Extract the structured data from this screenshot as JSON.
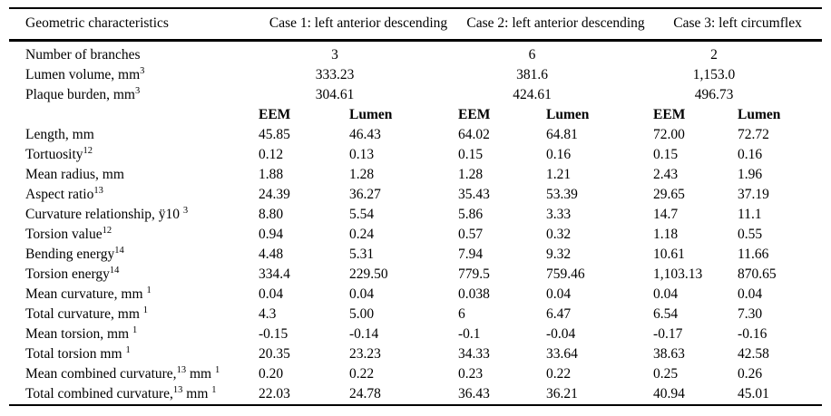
{
  "table": {
    "header": {
      "col1": "Geometric characteristics",
      "case1": "Case 1: left anterior descending",
      "case2": "Case 2: left anterior descending",
      "case3": "Case 3: left circumflex"
    },
    "summary_rows": [
      {
        "label": "Number of branches",
        "values": [
          "3",
          "6",
          "2"
        ]
      },
      {
        "label": "Lumen volume, mm^{3}",
        "values": [
          "333.23",
          "381.6",
          "1,153.0"
        ]
      },
      {
        "label": "Plaque burden, mm^{3}",
        "values": [
          "304.61",
          "424.61",
          "496.73"
        ]
      }
    ],
    "subheader": {
      "eem": "EEM",
      "lumen": "Lumen"
    },
    "rows": [
      {
        "label": "Length, mm",
        "values": [
          "45.85",
          "46.43",
          "64.02",
          "64.81",
          "72.00",
          "72.72"
        ]
      },
      {
        "label": "Tortuosity^{12}",
        "values": [
          "0.12",
          "0.13",
          "0.15",
          "0.16",
          "0.15",
          "0.16"
        ]
      },
      {
        "label": "Mean radius, mm",
        "values": [
          "1.88",
          "1.28",
          "1.28",
          "1.21",
          "2.43",
          "1.96"
        ]
      },
      {
        "label": "Aspect ratio^{13}",
        "values": [
          "24.39",
          "36.27",
          "35.43",
          "53.39",
          "29.65",
          "37.19"
        ]
      },
      {
        "label": "Curvature relationship, ÿ10 ^{3}",
        "values": [
          "8.80",
          "5.54",
          "5.86",
          "3.33",
          "14.7",
          "11.1"
        ]
      },
      {
        "label": "Torsion value^{12}",
        "values": [
          "0.94",
          "0.24",
          "0.57",
          "0.32",
          "1.18",
          "0.55"
        ]
      },
      {
        "label": "Bending energy^{14}",
        "values": [
          "4.48",
          "5.31",
          "7.94",
          "9.32",
          "10.61",
          "11.66"
        ]
      },
      {
        "label": "Torsion energy^{14}",
        "values": [
          "334.4",
          "229.50",
          "779.5",
          "759.46",
          "1,103.13",
          "870.65"
        ]
      },
      {
        "label": "Mean curvature, mm ^{1}",
        "values": [
          "0.04",
          "0.04",
          "0.038",
          "0.04",
          "0.04",
          "0.04"
        ]
      },
      {
        "label": "Total curvature, mm ^{1}",
        "values": [
          "4.3",
          "5.00",
          "6",
          "6.47",
          "6.54",
          "7.30"
        ]
      },
      {
        "label": "Mean torsion, mm ^{1}",
        "values": [
          "-0.15",
          "-0.14",
          "-0.1",
          "-0.04",
          "-0.17",
          "-0.16"
        ]
      },
      {
        "label": "Total torsion mm ^{1}",
        "values": [
          "20.35",
          "23.23",
          "34.33",
          "33.64",
          "38.63",
          "42.58"
        ]
      },
      {
        "label": "Mean combined curvature,^{13} mm ^{1}",
        "values": [
          "0.20",
          "0.22",
          "0.23",
          "0.22",
          "0.25",
          "0.26"
        ]
      },
      {
        "label": "Total combined curvature,^{13} mm ^{1}",
        "values": [
          "22.03",
          "24.78",
          "36.43",
          "36.21",
          "40.94",
          "45.01"
        ]
      }
    ]
  }
}
